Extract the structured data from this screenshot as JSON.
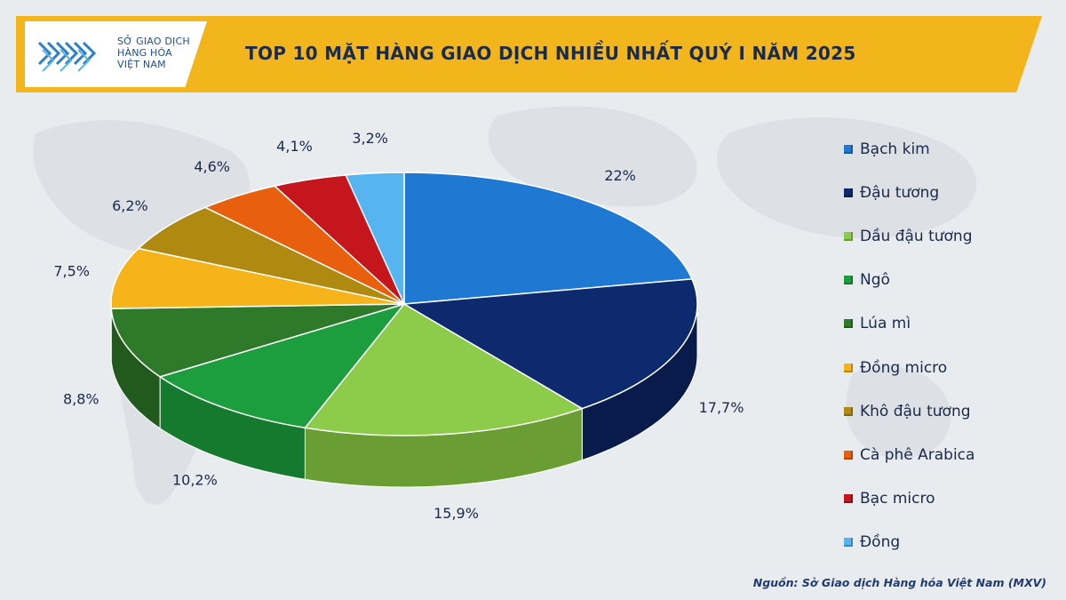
{
  "logo": {
    "line1": "SỞ GIAO DỊCH",
    "line2": "HÀNG HÓA",
    "line3": "VIỆT NAM"
  },
  "title": "TOP 10 MẶT HÀNG GIAO DỊCH NHIỀU NHẤT QUÝ I NĂM 2025",
  "source": "Nguồn: Sở Giao dịch Hàng hóa Việt Nam (MXV)",
  "chart_data": {
    "type": "pie",
    "title": "TOP 10 MẶT HÀNG GIAO DỊCH NHIỀU NHẤT QUÝ I NĂM 2025",
    "legend_position": "right",
    "categories": [
      "Bạch kim",
      "Đậu tương",
      "Dầu đậu tương",
      "Ngô",
      "Lúa mì",
      "Đồng micro",
      "Khô đậu tương",
      "Cà phê Arabica",
      "Bạc micro",
      "Đồng"
    ],
    "values": [
      22,
      17.7,
      15.9,
      10.2,
      8.8,
      7.5,
      6.2,
      4.6,
      4.1,
      3.2
    ],
    "value_labels": [
      "22%",
      "17,7%",
      "15,9%",
      "10,2%",
      "8,8%",
      "7,5%",
      "6,2%",
      "4,6%",
      "4,1%",
      "3,2%"
    ],
    "colors": [
      "#1f78d1",
      "#0d2a6e",
      "#8dcc4a",
      "#1d9e3e",
      "#2f7a2a",
      "#f5b41a",
      "#b08a10",
      "#e8600e",
      "#c4161c",
      "#56b4ef"
    ],
    "side_colors": [
      "#155aa0",
      "#081b4b",
      "#6a9d33",
      "#157a2e",
      "#225a1e",
      "#c98f10",
      "#86690b",
      "#b54a0a",
      "#961014",
      "#3a8ccc"
    ]
  }
}
